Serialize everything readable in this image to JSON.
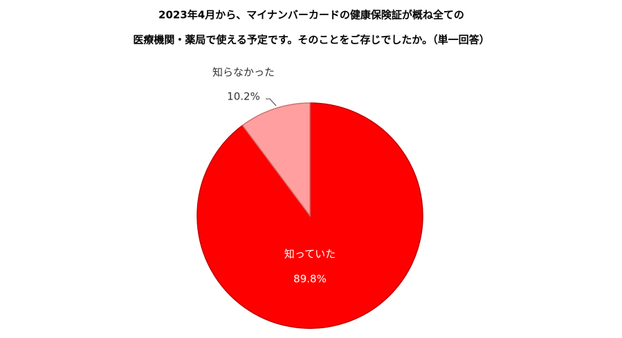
{
  "chart_data": {
    "type": "pie",
    "title": [
      "2023年4月から、マイナンバーカードの健康保険証が概ね全ての",
      "医療機関・薬局で使える予定です。そのことをご存じでしたか。（単一回答）"
    ],
    "categories": [
      "知っていた",
      "知らなかった"
    ],
    "values": [
      89.8,
      10.2
    ],
    "value_labels": [
      "89.8%",
      "10.2%"
    ],
    "colors": [
      "#ff0000",
      "#ff9f9f"
    ]
  }
}
